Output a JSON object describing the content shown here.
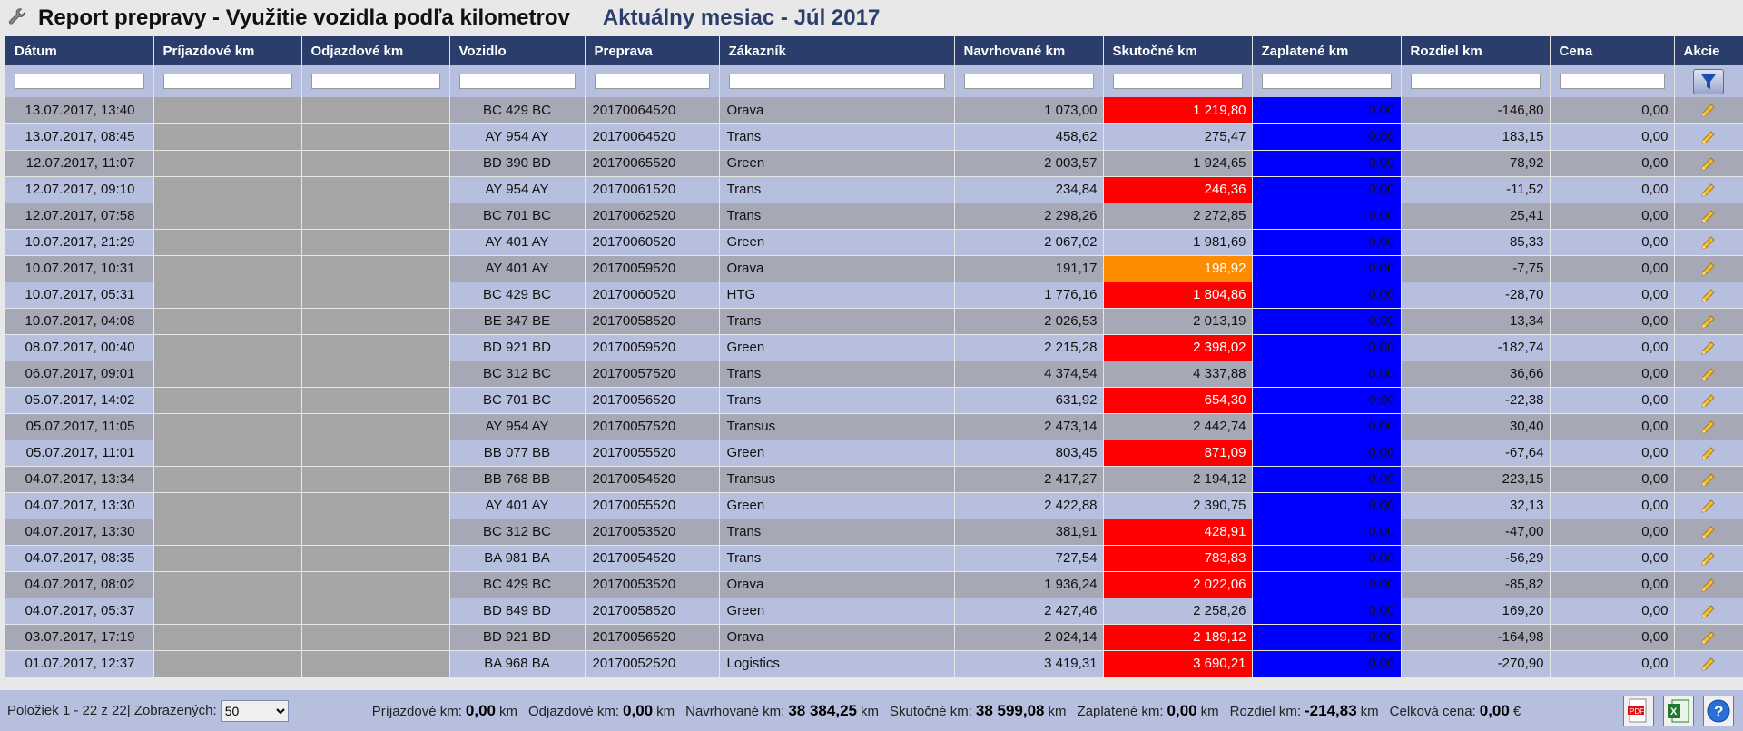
{
  "title": "Report prepravy - Využitie vozidla podľa kilometrov",
  "period": "Aktuálny mesiac - Júl 2017",
  "columns": [
    "Dátum",
    "Príjazdové km",
    "Odjazdové km",
    "Vozidlo",
    "Preprava",
    "Zákazník",
    "Navrhované km",
    "Skutočné km",
    "Zaplatené km",
    "Rozdiel km",
    "Cena",
    "Akcie"
  ],
  "rows": [
    {
      "date": "13.07.2017, 13:40",
      "vehicle": "BC 429 BC",
      "transport": "20170064520",
      "customer": "Orava",
      "proposed": "1 073,00",
      "actual": "1 219,80",
      "actual_state": "over",
      "paid": "0,00",
      "diff": "-146,80",
      "price": "0,00"
    },
    {
      "date": "13.07.2017, 08:45",
      "vehicle": "AY 954 AY",
      "transport": "20170064520",
      "customer": "Trans",
      "proposed": "458,62",
      "actual": "275,47",
      "actual_state": "ok",
      "paid": "0,00",
      "diff": "183,15",
      "price": "0,00"
    },
    {
      "date": "12.07.2017, 11:07",
      "vehicle": "BD 390 BD",
      "transport": "20170065520",
      "customer": "Green",
      "proposed": "2 003,57",
      "actual": "1 924,65",
      "actual_state": "ok",
      "paid": "0,00",
      "diff": "78,92",
      "price": "0,00"
    },
    {
      "date": "12.07.2017, 09:10",
      "vehicle": "AY 954 AY",
      "transport": "20170061520",
      "customer": "Trans",
      "proposed": "234,84",
      "actual": "246,36",
      "actual_state": "over",
      "paid": "0,00",
      "diff": "-11,52",
      "price": "0,00"
    },
    {
      "date": "12.07.2017, 07:58",
      "vehicle": "BC 701 BC",
      "transport": "20170062520",
      "customer": "Trans",
      "proposed": "2 298,26",
      "actual": "2 272,85",
      "actual_state": "ok",
      "paid": "0,00",
      "diff": "25,41",
      "price": "0,00"
    },
    {
      "date": "10.07.2017, 21:29",
      "vehicle": "AY 401 AY",
      "transport": "20170060520",
      "customer": "Green",
      "proposed": "2 067,02",
      "actual": "1 981,69",
      "actual_state": "ok",
      "paid": "0,00",
      "diff": "85,33",
      "price": "0,00"
    },
    {
      "date": "10.07.2017, 10:31",
      "vehicle": "AY 401 AY",
      "transport": "20170059520",
      "customer": "Orava",
      "proposed": "191,17",
      "actual": "198,92",
      "actual_state": "orange",
      "paid": "0,00",
      "diff": "-7,75",
      "price": "0,00"
    },
    {
      "date": "10.07.2017, 05:31",
      "vehicle": "BC 429 BC",
      "transport": "20170060520",
      "customer": "HTG",
      "proposed": "1 776,16",
      "actual": "1 804,86",
      "actual_state": "over",
      "paid": "0,00",
      "diff": "-28,70",
      "price": "0,00"
    },
    {
      "date": "10.07.2017, 04:08",
      "vehicle": "BE 347 BE",
      "transport": "20170058520",
      "customer": "Trans",
      "proposed": "2 026,53",
      "actual": "2 013,19",
      "actual_state": "ok",
      "paid": "0,00",
      "diff": "13,34",
      "price": "0,00"
    },
    {
      "date": "08.07.2017, 00:40",
      "vehicle": "BD 921 BD",
      "transport": "20170059520",
      "customer": "Green",
      "proposed": "2 215,28",
      "actual": "2 398,02",
      "actual_state": "over",
      "paid": "0,00",
      "diff": "-182,74",
      "price": "0,00"
    },
    {
      "date": "06.07.2017, 09:01",
      "vehicle": "BC 312 BC",
      "transport": "20170057520",
      "customer": "Trans",
      "proposed": "4 374,54",
      "actual": "4 337,88",
      "actual_state": "ok",
      "paid": "0,00",
      "diff": "36,66",
      "price": "0,00"
    },
    {
      "date": "05.07.2017, 14:02",
      "vehicle": "BC 701 BC",
      "transport": "20170056520",
      "customer": "Trans",
      "proposed": "631,92",
      "actual": "654,30",
      "actual_state": "over",
      "paid": "0,00",
      "diff": "-22,38",
      "price": "0,00"
    },
    {
      "date": "05.07.2017, 11:05",
      "vehicle": "AY 954 AY",
      "transport": "20170057520",
      "customer": "Transus",
      "proposed": "2 473,14",
      "actual": "2 442,74",
      "actual_state": "ok",
      "paid": "0,00",
      "diff": "30,40",
      "price": "0,00"
    },
    {
      "date": "05.07.2017, 11:01",
      "vehicle": "BB 077 BB",
      "transport": "20170055520",
      "customer": "Green",
      "proposed": "803,45",
      "actual": "871,09",
      "actual_state": "over",
      "paid": "0,00",
      "diff": "-67,64",
      "price": "0,00"
    },
    {
      "date": "04.07.2017, 13:34",
      "vehicle": "BB 768 BB",
      "transport": "20170054520",
      "customer": "Transus",
      "proposed": "2 417,27",
      "actual": "2 194,12",
      "actual_state": "ok",
      "paid": "0,00",
      "diff": "223,15",
      "price": "0,00"
    },
    {
      "date": "04.07.2017, 13:30",
      "vehicle": "AY 401 AY",
      "transport": "20170055520",
      "customer": "Green",
      "proposed": "2 422,88",
      "actual": "2 390,75",
      "actual_state": "ok",
      "paid": "0,00",
      "diff": "32,13",
      "price": "0,00"
    },
    {
      "date": "04.07.2017, 13:30",
      "vehicle": "BC 312 BC",
      "transport": "20170053520",
      "customer": "Trans",
      "proposed": "381,91",
      "actual": "428,91",
      "actual_state": "over",
      "paid": "0,00",
      "diff": "-47,00",
      "price": "0,00"
    },
    {
      "date": "04.07.2017, 08:35",
      "vehicle": "BA 981 BA",
      "transport": "20170054520",
      "customer": "Trans",
      "proposed": "727,54",
      "actual": "783,83",
      "actual_state": "over",
      "paid": "0,00",
      "diff": "-56,29",
      "price": "0,00"
    },
    {
      "date": "04.07.2017, 08:02",
      "vehicle": "BC 429 BC",
      "transport": "20170053520",
      "customer": "Orava",
      "proposed": "1 936,24",
      "actual": "2 022,06",
      "actual_state": "over",
      "paid": "0,00",
      "diff": "-85,82",
      "price": "0,00"
    },
    {
      "date": "04.07.2017, 05:37",
      "vehicle": "BD 849 BD",
      "transport": "20170058520",
      "customer": "Green",
      "proposed": "2 427,46",
      "actual": "2 258,26",
      "actual_state": "ok",
      "paid": "0,00",
      "diff": "169,20",
      "price": "0,00"
    },
    {
      "date": "03.07.2017, 17:19",
      "vehicle": "BD 921 BD",
      "transport": "20170056520",
      "customer": "Orava",
      "proposed": "2 024,14",
      "actual": "2 189,12",
      "actual_state": "over",
      "paid": "0,00",
      "diff": "-164,98",
      "price": "0,00"
    },
    {
      "date": "01.07.2017, 12:37",
      "vehicle": "BA 968 BA",
      "transport": "20170052520",
      "customer": "Logistics",
      "proposed": "3 419,31",
      "actual": "3 690,21",
      "actual_state": "over",
      "paid": "0,00",
      "diff": "-270,90",
      "price": "0,00"
    }
  ],
  "footer": {
    "paging": "Položiek 1 - 22 z 22| Zobrazených:",
    "page_size": "50",
    "sums": [
      {
        "label": "Príjazdové km:",
        "value": "0,00",
        "unit": "km"
      },
      {
        "label": "Odjazdové km:",
        "value": "0,00",
        "unit": "km"
      },
      {
        "label": "Navrhované km:",
        "value": "38 384,25",
        "unit": "km"
      },
      {
        "label": "Skutočné km:",
        "value": "38 599,08",
        "unit": "km"
      },
      {
        "label": "Zaplatené km:",
        "value": "0,00",
        "unit": "km"
      },
      {
        "label": "Rozdiel km:",
        "value": "-214,83",
        "unit": "km"
      },
      {
        "label": "Celková cena:",
        "value": "0,00",
        "unit": "€"
      }
    ]
  },
  "colors": {
    "header": "#2b3d6b",
    "over": "#ff0000",
    "warning": "#ff8c00",
    "paid": "#0000ff",
    "row_odd": "#a6a9b5",
    "row_even": "#b6bfdd"
  },
  "icons": {
    "title": "wrench-icon",
    "action": "pencil-edit-icon",
    "filter": "funnel-icon",
    "tools": [
      "pdf-export-icon",
      "excel-export-icon",
      "help-icon"
    ]
  }
}
